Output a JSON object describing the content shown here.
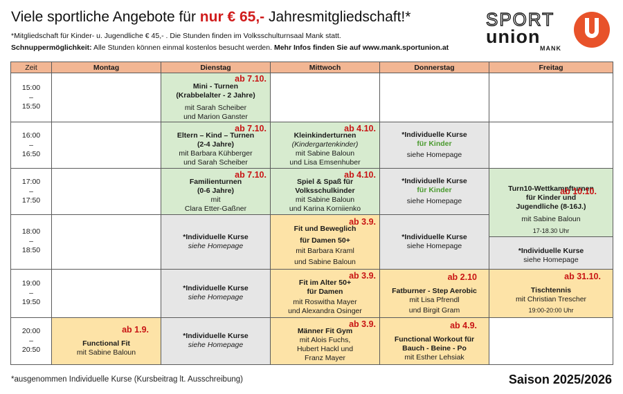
{
  "header": {
    "title_pre": "Viele sportliche Angebote für ",
    "title_price": "nur € 65,-",
    "title_post": " Jahresmitgliedschaft!*",
    "line1": "*Mitgliedschaft für Kinder- u. Jugendliche € 45,- . Die Stunden finden im Volksschulturnsaal Mank statt.",
    "line2_label": "Schnuppermöglichkeit:",
    "line2_text": " Alle Stunden können einmal kostenlos besucht werden. ",
    "line2_info": "Mehr Infos finden Sie auf www.mank.sportunion.at"
  },
  "logo": {
    "word1": "SPORT",
    "word2": "union",
    "word3": "MANK",
    "color": "#e8522a"
  },
  "table": {
    "headers": [
      "Zeit",
      "Montag",
      "Dienstag",
      "Mittwoch",
      "Donnerstag",
      "Freitag"
    ],
    "times": [
      {
        "start": "15:00",
        "dash": "–",
        "end": "15:50"
      },
      {
        "start": "16:00",
        "dash": "–",
        "end": "16:50"
      },
      {
        "start": "17:00",
        "dash": "–",
        "end": "17:50"
      },
      {
        "start": "18:00",
        "dash": "–",
        "end": "18:50"
      },
      {
        "start": "19:00",
        "dash": "–",
        "end": "19:50"
      },
      {
        "start": "20:00",
        "dash": "–",
        "end": "20:50"
      }
    ],
    "cells": {
      "di_15": {
        "from": "ab 7.10.",
        "title": "Mini - Turnen",
        "sub": "(Krabbelalter - 2 Jahre)",
        "l1": "mit Sarah Scheiber",
        "l2": "und Marion Ganster"
      },
      "di_16": {
        "from": "ab 7.10.",
        "title": "Eltern – Kind – Turnen",
        "sub": "(2-4 Jahre)",
        "l1": "mit Barbara Kühberger",
        "l2": "und Sarah Scheiber"
      },
      "mi_16": {
        "from": "ab 4.10.",
        "title": "Kleinkinderturnen",
        "sub": "(Kindergartenkinder)",
        "l1": "mit Sabine Baloun",
        "l2": "und Lisa Emsenhuber"
      },
      "do_16": {
        "title": "*Individuelle Kurse",
        "sub": "für Kinder",
        "l1": "siehe Homepage"
      },
      "di_17": {
        "from": "ab 7.10.",
        "title": "Familienturnen",
        "sub": "(0-6 Jahre)",
        "l1": "mit",
        "l2": "Clara Etter-Gaßner"
      },
      "mi_17": {
        "from": "ab 4.10.",
        "title": "Spiel & Spaß für",
        "sub": "Volksschulkinder",
        "l1": "mit Sabine Baloun",
        "l2": "und Karina Korniienko"
      },
      "do_17": {
        "title": "*Individuelle Kurse",
        "sub": "für Kinder",
        "l1": "siehe Homepage"
      },
      "fr_17": {
        "from": "ab 10.10.",
        "title": "Turn10-Wettkampfturnen",
        "sub1": "für Kinder und",
        "sub2": "Jugendliche (8-16J.)",
        "l1": "mit Sabine Baloun",
        "time": "17-18.30 Uhr"
      },
      "di_18": {
        "title": "*Individuelle Kurse",
        "l1": "siehe Homepage"
      },
      "mi_18": {
        "from": "ab 3.9.",
        "title": "Fit und Beweglich",
        "sub": "für Damen 50+",
        "l1": "mit Barbara Kraml",
        "l2": "und Sabine Baloun"
      },
      "do_18": {
        "title": "*Individuelle Kurse",
        "l1": "siehe Homepage"
      },
      "fr_18": {
        "title": "*Individuelle Kurse",
        "l1": "siehe Homepage"
      },
      "di_19": {
        "title": "*Individuelle Kurse",
        "l1": "siehe Homepage"
      },
      "mi_19": {
        "from": "ab 3.9.",
        "title": "Fit im Alter 50+",
        "sub": "für Damen",
        "l1": "mit Roswitha Mayer",
        "l2": "und Alexandra Osinger"
      },
      "do_19": {
        "from": "ab 2.10",
        "title": "Fatburner - Step Aerobic",
        "l1": "mit Lisa Pfrendl",
        "l2": "und Birgit Gram"
      },
      "fr_19": {
        "from": "ab 31.10.",
        "title": "Tischtennis",
        "l1": "mit Christian Trescher",
        "time": "19:00-20:00 Uhr"
      },
      "mo_20": {
        "from": "ab 1.9.",
        "title": "Functional Fit",
        "l1": "mit Sabine Baloun"
      },
      "di_20": {
        "title": "*Individuelle Kurse",
        "l1": "siehe Homepage"
      },
      "mi_20": {
        "from": "ab 3.9.",
        "title": "Männer Fit Gym",
        "l1": "mit Alois Fuchs,",
        "l2": "Hubert Hackl und",
        "l3": "Franz Mayer"
      },
      "do_20": {
        "from": "ab 4.9.",
        "title": "Functional Workout für",
        "sub": "Bauch - Beine - Po",
        "l1": "mit Esther Lehsiak"
      }
    }
  },
  "footer": {
    "note": "*ausgenommen Individuelle Kurse (Kursbeitrag lt. Ausschreibung)",
    "season": "Saison 2025/2026"
  }
}
